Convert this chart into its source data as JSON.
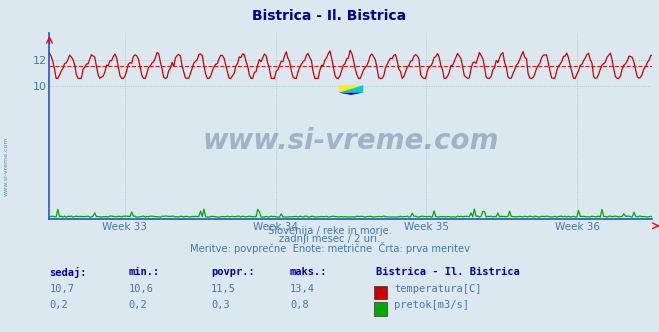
{
  "title": "Bistrica - Il. Bistrica",
  "title_color": "#000099",
  "bg_color": "#dce8f0",
  "plot_bg_color": "#dce8f0",
  "grid_color": "#aabbcc",
  "temp_color": "#cc0000",
  "flow_color": "#00aa00",
  "avg_line_color": "#cc0000",
  "temp_min": 10.6,
  "temp_max": 13.4,
  "temp_avg": 11.5,
  "flow_min": 0.0,
  "flow_max": 0.8,
  "y_min": 0,
  "y_max": 14,
  "y_ticks": [
    10,
    12
  ],
  "n_points": 360,
  "weeks": 4,
  "subtitle1": "Slovenija / reke in morje.",
  "subtitle2": "zadnji mesec / 2 uri.",
  "subtitle3": "Meritve: povprečne  Enote: metrične  Črta: prva meritev",
  "subtitle_color": "#4477aa",
  "watermark": "www.si-vreme.com",
  "watermark_color": "#1a3a6a",
  "label_sedaj": "sedaj:",
  "label_min": "min.:",
  "label_povpr": "povpr.:",
  "label_maks": "maks.:",
  "label_station": "Bistrica - Il. Bistrica",
  "label_temp": "temperatura[C]",
  "label_flow": "pretok[m3/s]",
  "label_color": "#0000bb",
  "axis_color": "#2255cc",
  "tick_color": "#4477aa"
}
